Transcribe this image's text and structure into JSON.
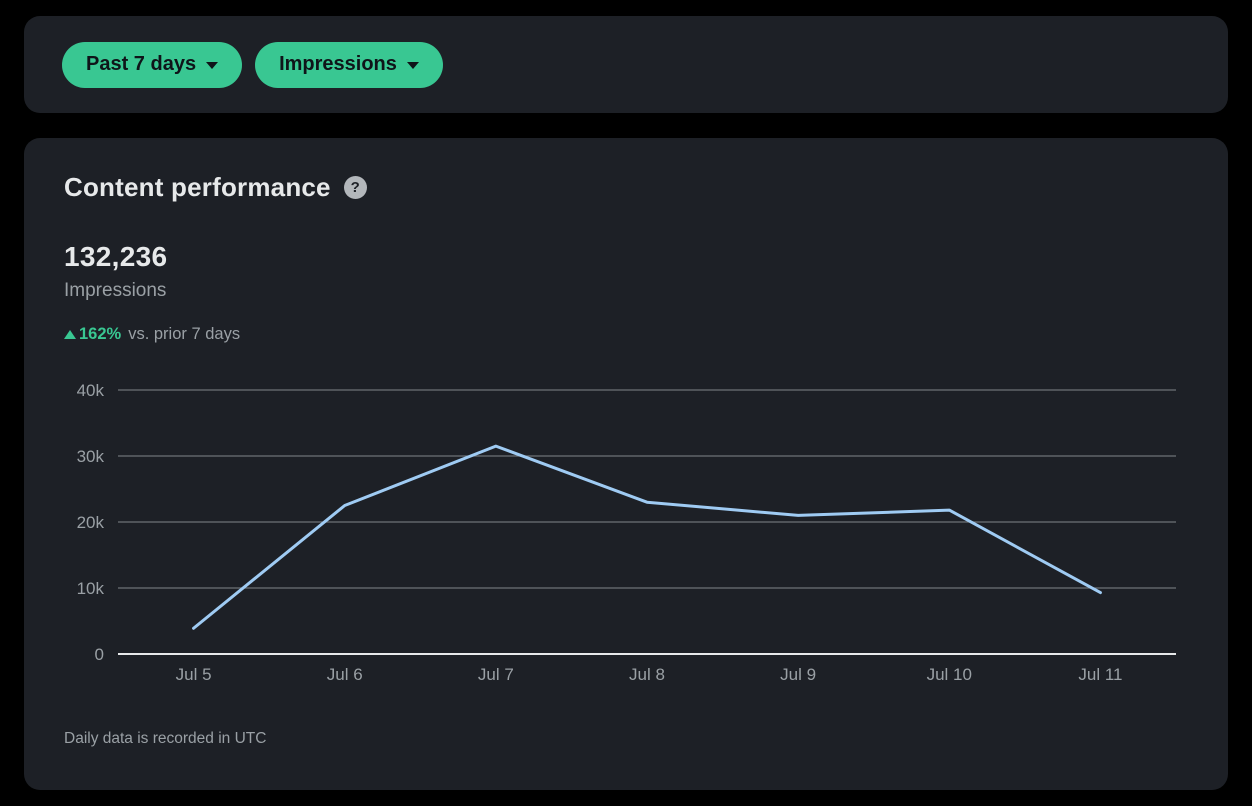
{
  "filters": {
    "date_range_label": "Past 7 days",
    "metric_label": "Impressions"
  },
  "content": {
    "title": "Content performance",
    "help_glyph": "?",
    "metric_value": "132,236",
    "metric_label": "Impressions",
    "change_percent": "162%",
    "change_comparison": "vs. prior 7 days",
    "footnote": "Daily data is recorded in UTC"
  },
  "chart_data": {
    "type": "line",
    "title": "Content performance — Impressions, past 7 days",
    "categories": [
      "Jul 5",
      "Jul 6",
      "Jul 7",
      "Jul 8",
      "Jul 9",
      "Jul 10",
      "Jul 11"
    ],
    "values": [
      3900,
      22500,
      31500,
      23000,
      21000,
      21800,
      9300
    ],
    "series_name": "Impressions",
    "xlabel": "",
    "ylabel": "",
    "ylim": [
      0,
      40000
    ],
    "yticks": [
      0,
      10000,
      20000,
      30000,
      40000
    ],
    "ytick_labels": [
      "0",
      "10k",
      "20k",
      "30k",
      "40k"
    ],
    "grid": "horizontal",
    "legend": "none",
    "line_color": "#9fcbf3"
  },
  "colors": {
    "page_bg": "#000000",
    "card_bg": "#1d2026",
    "accent_green": "#39c792",
    "line_blue": "#9fcbf3",
    "gridline": "#6e7277",
    "axis_line": "#e7e9ea",
    "text_primary": "#e7e9ea",
    "text_secondary": "#9aa0a5",
    "button_text": "#0f1419",
    "help_icon_bg": "#b3b7bb"
  }
}
